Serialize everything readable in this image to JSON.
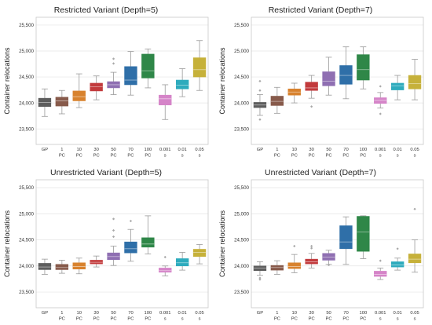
{
  "chart_data": [
    {
      "type": "box",
      "title": "Restricted Variant (Depth=5)",
      "ylabel": "Container relocations",
      "ylim": [
        23200,
        25650
      ],
      "yticks": [
        23500,
        24000,
        24500,
        25000,
        25500
      ],
      "ytick_labels": [
        "23,500",
        "24,000",
        "24,500",
        "25,000",
        "25,500"
      ],
      "grid": true,
      "categories": [
        [
          "GP"
        ],
        [
          "1",
          "PC"
        ],
        [
          "10",
          "PC"
        ],
        [
          "30",
          "PC"
        ],
        [
          "50",
          "PC"
        ],
        [
          "70",
          "PC"
        ],
        [
          "100",
          "PC"
        ],
        [
          "0.001",
          "s"
        ],
        [
          "0.01",
          "s"
        ],
        [
          "0.05",
          "s"
        ]
      ],
      "boxes": [
        {
          "whislo": 23740,
          "q1": 23930,
          "med": 24010,
          "q3": 24090,
          "whishi": 24270,
          "fliers": []
        },
        {
          "whislo": 23790,
          "q1": 23940,
          "med": 24040,
          "q3": 24110,
          "whishi": 24240,
          "fliers": []
        },
        {
          "whislo": 23910,
          "q1": 24040,
          "med": 24120,
          "q3": 24230,
          "whishi": 24560,
          "fliers": []
        },
        {
          "whislo": 24060,
          "q1": 24230,
          "med": 24310,
          "q3": 24380,
          "whishi": 24520,
          "fliers": []
        },
        {
          "whislo": 24160,
          "q1": 24290,
          "med": 24350,
          "q3": 24410,
          "whishi": 24590,
          "fliers": [
            24760,
            24850
          ]
        },
        {
          "whislo": 24150,
          "q1": 24350,
          "med": 24440,
          "q3": 24700,
          "whishi": 24990,
          "fliers": []
        },
        {
          "whislo": 24290,
          "q1": 24480,
          "med": 24620,
          "q3": 24940,
          "whishi": 25040,
          "fliers": []
        },
        {
          "whislo": 23680,
          "q1": 23960,
          "med": 24080,
          "q3": 24150,
          "whishi": 24350,
          "fliers": []
        },
        {
          "whislo": 24120,
          "q1": 24270,
          "med": 24340,
          "q3": 24440,
          "whishi": 24660,
          "fliers": []
        },
        {
          "whislo": 24240,
          "q1": 24500,
          "med": 24640,
          "q3": 24870,
          "whishi": 25200,
          "fliers": []
        }
      ]
    },
    {
      "type": "box",
      "title": "Restricted Variant (Depth=7)",
      "ylabel": "Container relocations",
      "ylim": [
        23200,
        25650
      ],
      "yticks": [
        23500,
        24000,
        24500,
        25000,
        25500
      ],
      "ytick_labels": [
        "23,500",
        "24,000",
        "24,500",
        "25,000",
        "25,500"
      ],
      "grid": true,
      "categories": [
        [
          "GP"
        ],
        [
          "1",
          "PC"
        ],
        [
          "10",
          "PC"
        ],
        [
          "30",
          "PC"
        ],
        [
          "50",
          "PC"
        ],
        [
          "70",
          "PC"
        ],
        [
          "100",
          "PC"
        ],
        [
          "0.001",
          "s"
        ],
        [
          "0.01",
          "s"
        ],
        [
          "0.05",
          "s"
        ]
      ],
      "boxes": [
        {
          "whislo": 23760,
          "q1": 23910,
          "med": 23960,
          "q3": 24010,
          "whishi": 24160,
          "fliers": [
            23680,
            24240,
            24420
          ]
        },
        {
          "whislo": 23800,
          "q1": 23950,
          "med": 24030,
          "q3": 24130,
          "whishi": 24300,
          "fliers": []
        },
        {
          "whislo": 24000,
          "q1": 24150,
          "med": 24210,
          "q3": 24270,
          "whishi": 24380,
          "fliers": []
        },
        {
          "whislo": 24090,
          "q1": 24240,
          "med": 24290,
          "q3": 24400,
          "whishi": 24530,
          "fliers": [
            23930
          ]
        },
        {
          "whislo": 24150,
          "q1": 24330,
          "med": 24420,
          "q3": 24600,
          "whishi": 24880,
          "fliers": []
        },
        {
          "whislo": 24080,
          "q1": 24360,
          "med": 24530,
          "q3": 24720,
          "whishi": 25080,
          "fliers": []
        },
        {
          "whislo": 24270,
          "q1": 24440,
          "med": 24640,
          "q3": 24930,
          "whishi": 25080,
          "fliers": []
        },
        {
          "whislo": 23900,
          "q1": 23990,
          "med": 24050,
          "q3": 24100,
          "whishi": 24200,
          "fliers": [
            23790,
            24320
          ]
        },
        {
          "whislo": 24060,
          "q1": 24250,
          "med": 24330,
          "q3": 24380,
          "whishi": 24530,
          "fliers": []
        },
        {
          "whislo": 24060,
          "q1": 24270,
          "med": 24370,
          "q3": 24530,
          "whishi": 24840,
          "fliers": []
        }
      ]
    },
    {
      "type": "box",
      "title": "Unrestricted Variant (Depth=5)",
      "ylabel": "Container relocations",
      "ylim": [
        23200,
        25650
      ],
      "yticks": [
        23500,
        24000,
        24500,
        25000,
        25500
      ],
      "ytick_labels": [
        "23,500",
        "24,000",
        "24,500",
        "25,000",
        "25,500"
      ],
      "grid": true,
      "categories": [
        [
          "GP"
        ],
        [
          "1",
          "PC"
        ],
        [
          "10",
          "PC"
        ],
        [
          "30",
          "PC"
        ],
        [
          "50",
          "PC"
        ],
        [
          "70",
          "PC"
        ],
        [
          "100",
          "PC"
        ],
        [
          "0.001",
          "s"
        ],
        [
          "0.01",
          "s"
        ],
        [
          "0.05",
          "s"
        ]
      ],
      "boxes": [
        {
          "whislo": 23840,
          "q1": 23930,
          "med": 23980,
          "q3": 24050,
          "whishi": 24130,
          "fliers": []
        },
        {
          "whislo": 23860,
          "q1": 23930,
          "med": 23970,
          "q3": 24030,
          "whishi": 24110,
          "fliers": []
        },
        {
          "whislo": 23850,
          "q1": 23940,
          "med": 23990,
          "q3": 24060,
          "whishi": 24150,
          "fliers": []
        },
        {
          "whislo": 23980,
          "q1": 24040,
          "med": 24070,
          "q3": 24110,
          "whishi": 24190,
          "fliers": []
        },
        {
          "whislo": 24010,
          "q1": 24120,
          "med": 24180,
          "q3": 24250,
          "whishi": 24380,
          "fliers": [
            24560,
            24680,
            24900
          ]
        },
        {
          "whislo": 24090,
          "q1": 24250,
          "med": 24330,
          "q3": 24460,
          "whishi": 24700,
          "fliers": [
            24860
          ]
        },
        {
          "whislo": 24230,
          "q1": 24360,
          "med": 24420,
          "q3": 24540,
          "whishi": 24960,
          "fliers": []
        },
        {
          "whislo": 23810,
          "q1": 23880,
          "med": 23910,
          "q3": 23960,
          "whishi": 24000,
          "fliers": [
            24170
          ]
        },
        {
          "whislo": 23920,
          "q1": 24000,
          "med": 24060,
          "q3": 24140,
          "whishi": 24260,
          "fliers": []
        },
        {
          "whislo": 24040,
          "q1": 24180,
          "med": 24260,
          "q3": 24320,
          "whishi": 24410,
          "fliers": []
        }
      ]
    },
    {
      "type": "box",
      "title": "Unrestricted Variant (Depth=7)",
      "ylabel": "Container relocations",
      "ylim": [
        23200,
        25650
      ],
      "yticks": [
        23500,
        24000,
        24500,
        25000,
        25500
      ],
      "ytick_labels": [
        "23,500",
        "24,000",
        "24,500",
        "25,000",
        "25,500"
      ],
      "grid": true,
      "categories": [
        [
          "GP"
        ],
        [
          "1",
          "PC"
        ],
        [
          "10",
          "PC"
        ],
        [
          "30",
          "PC"
        ],
        [
          "50",
          "PC"
        ],
        [
          "70",
          "PC"
        ],
        [
          "100",
          "PC"
        ],
        [
          "0.001",
          "s"
        ],
        [
          "0.01",
          "s"
        ],
        [
          "0.05",
          "s"
        ]
      ],
      "boxes": [
        {
          "whislo": 23820,
          "q1": 23910,
          "med": 23960,
          "q3": 24000,
          "whishi": 24080,
          "fliers": [
            23740,
            23770
          ]
        },
        {
          "whislo": 23840,
          "q1": 23920,
          "med": 23970,
          "q3": 24010,
          "whishi": 24100,
          "fliers": []
        },
        {
          "whislo": 23870,
          "q1": 23950,
          "med": 23990,
          "q3": 24060,
          "whishi": 24220,
          "fliers": [
            24380
          ]
        },
        {
          "whislo": 23960,
          "q1": 24040,
          "med": 24080,
          "q3": 24130,
          "whishi": 24240,
          "fliers": [
            24340,
            24380
          ]
        },
        {
          "whislo": 24030,
          "q1": 24110,
          "med": 24170,
          "q3": 24240,
          "whishi": 24300,
          "fliers": [
            24020
          ]
        },
        {
          "whislo": 24030,
          "q1": 24330,
          "med": 24460,
          "q3": 24770,
          "whishi": 24940,
          "fliers": []
        },
        {
          "whislo": 24140,
          "q1": 24280,
          "med": 24650,
          "q3": 24950,
          "whishi": 24960,
          "fliers": []
        },
        {
          "whislo": 23740,
          "q1": 23800,
          "med": 23840,
          "q3": 23900,
          "whishi": 23960,
          "fliers": [
            24100
          ]
        },
        {
          "whislo": 23920,
          "q1": 23980,
          "med": 24020,
          "q3": 24080,
          "whishi": 24150,
          "fliers": [
            24330
          ]
        },
        {
          "whislo": 23880,
          "q1": 24060,
          "med": 24130,
          "q3": 24230,
          "whishi": 24500,
          "fliers": [
            25090
          ]
        }
      ]
    }
  ],
  "colors": {
    "series": [
      "#5d5d5d",
      "#875a4b",
      "#d8822e",
      "#c23a3c",
      "#8f6fb2",
      "#2f6fa8",
      "#2f8748",
      "#d584c8",
      "#2eabbd",
      "#c6b13a"
    ],
    "grid": "#e4e4e4",
    "frame": "#c9c9c9",
    "whisker": "#9a9a9a"
  }
}
